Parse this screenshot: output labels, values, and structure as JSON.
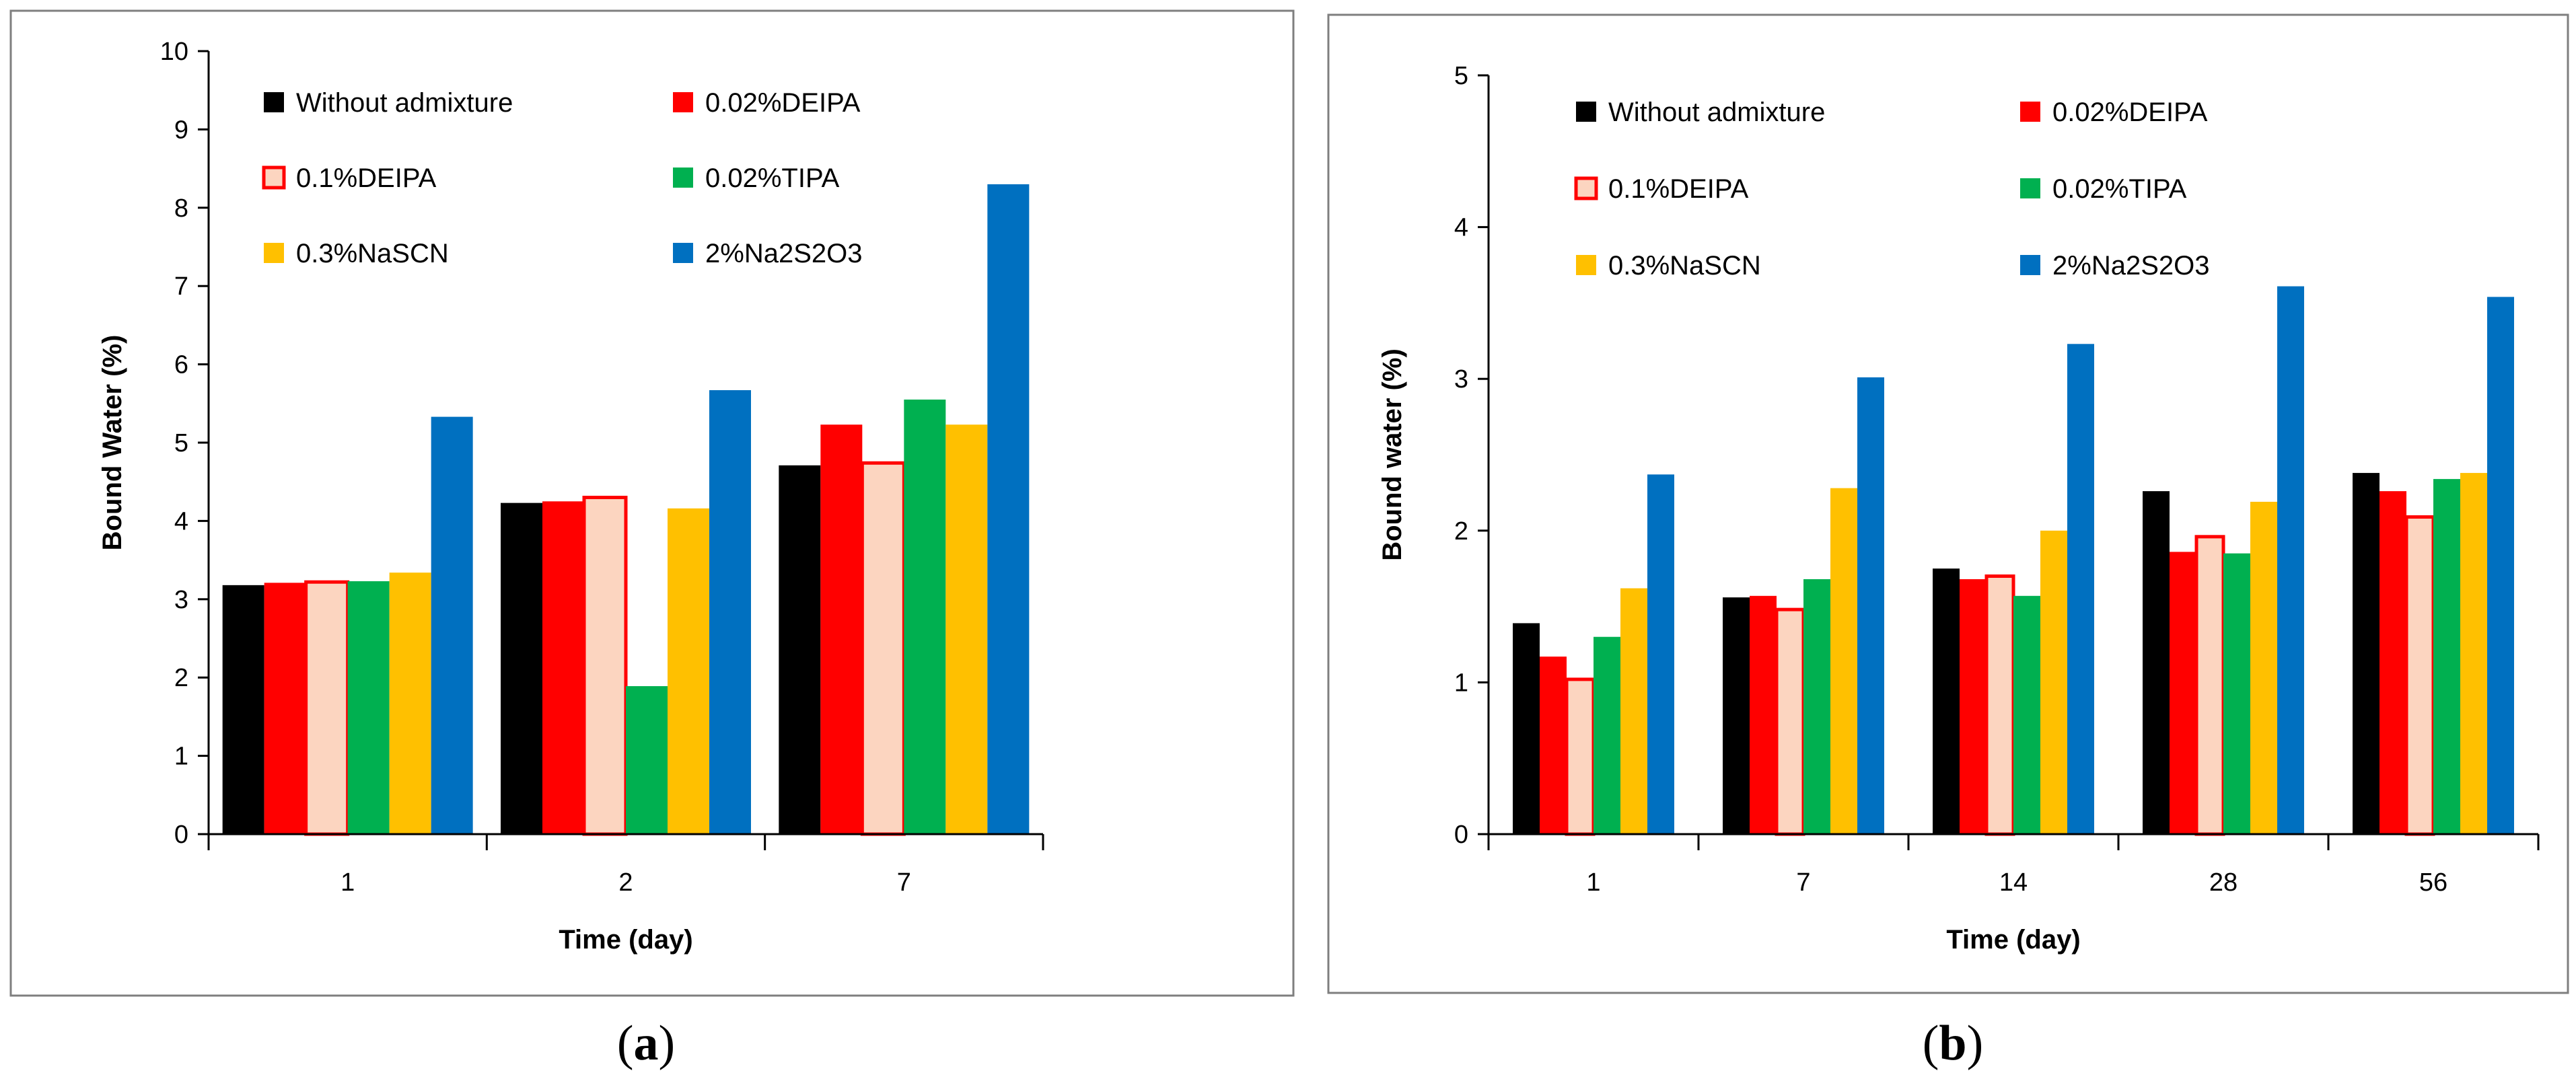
{
  "chart_data": [
    {
      "type": "bar",
      "panel_label": "(a)",
      "xlabel": "Time (day)",
      "ylabel": "Bound Water (%)",
      "categories": [
        "1",
        "2",
        "7"
      ],
      "ylim": [
        0,
        10
      ],
      "yticks": [
        0,
        1,
        2,
        3,
        4,
        5,
        6,
        7,
        8,
        9,
        10
      ],
      "legend_columns": 2,
      "legend_placement": "top-left",
      "grid": false,
      "series": [
        {
          "name": "Without admixture",
          "color": "#000000",
          "values": [
            3.18,
            4.23,
            4.71
          ]
        },
        {
          "name": "0.02%DEIPA",
          "color": "#ff0000",
          "values": [
            3.21,
            4.25,
            5.23
          ]
        },
        {
          "name": "0.1%DEIPA",
          "color": "#fcd5c0",
          "edge": "#ff0000",
          "values": [
            3.22,
            4.3,
            4.74
          ]
        },
        {
          "name": "0.02%TIPA",
          "color": "#00b050",
          "values": [
            3.23,
            1.89,
            5.55
          ]
        },
        {
          "name": "0.3%NaSCN",
          "color": "#ffc000",
          "values": [
            3.34,
            4.16,
            5.23
          ]
        },
        {
          "name": "2%Na2S2O3",
          "color": "#0070c0",
          "values": [
            5.33,
            5.67,
            8.3
          ]
        }
      ]
    },
    {
      "type": "bar",
      "panel_label": "(b)",
      "xlabel": "Time (day)",
      "ylabel": "Bound water (%)",
      "categories": [
        "1",
        "7",
        "14",
        "28",
        "56"
      ],
      "ylim": [
        0,
        5
      ],
      "yticks": [
        0,
        1,
        2,
        3,
        4,
        5
      ],
      "legend_columns": 2,
      "legend_placement": "top-left",
      "grid": false,
      "series": [
        {
          "name": "Without admixture",
          "color": "#000000",
          "values": [
            1.39,
            1.56,
            1.75,
            2.26,
            2.38
          ]
        },
        {
          "name": "0.02%DEIPA",
          "color": "#ff0000",
          "values": [
            1.17,
            1.57,
            1.68,
            1.86,
            2.26
          ]
        },
        {
          "name": "0.1%DEIPA",
          "color": "#fcd5c0",
          "edge": "#ff0000",
          "values": [
            1.02,
            1.48,
            1.7,
            1.96,
            2.09
          ]
        },
        {
          "name": "0.02%TIPA",
          "color": "#00b050",
          "values": [
            1.3,
            1.68,
            1.57,
            1.85,
            2.34
          ]
        },
        {
          "name": "0.3%NaSCN",
          "color": "#ffc000",
          "values": [
            1.62,
            2.28,
            2.0,
            2.19,
            2.38
          ]
        },
        {
          "name": "2%Na2S2O3",
          "color": "#0070c0",
          "values": [
            2.37,
            3.01,
            3.23,
            3.61,
            3.54
          ]
        }
      ]
    }
  ]
}
